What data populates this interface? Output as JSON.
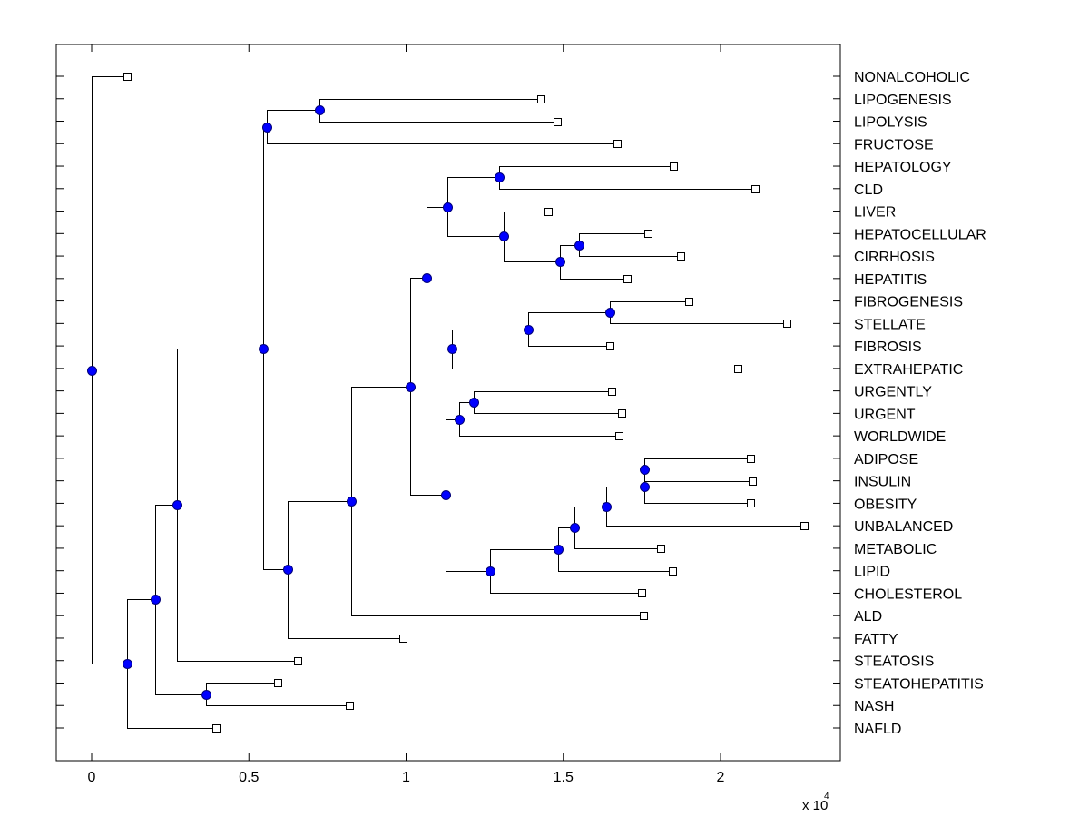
{
  "chart_data": {
    "type": "dendrogram",
    "title": "",
    "xlabel": "",
    "ylabel": "",
    "x_multiplier_label": "x 10",
    "x_multiplier_exponent": "4",
    "xlim": [
      -0.1125,
      2.38
    ],
    "xticks": [
      0,
      0.5,
      1,
      1.5,
      2
    ],
    "xtick_labels": [
      "0",
      "0.5",
      "1",
      "1.5",
      "2"
    ],
    "grid": false,
    "colors": {
      "node_fill": "#0000ff",
      "node_stroke": "#00007a",
      "leaf_fill": "#ffffff",
      "line": "#000000"
    },
    "leaves": [
      {
        "id": "NONALCOHOLIC",
        "label": "NONALCOHOLIC",
        "x": 0.113
      },
      {
        "id": "LIPOGENESIS",
        "label": "LIPOGENESIS",
        "x": 1.43
      },
      {
        "id": "LIPOLYSIS",
        "label": "LIPOLYSIS",
        "x": 1.48
      },
      {
        "id": "FRUCTOSE",
        "label": "FRUCTOSE",
        "x": 1.67
      },
      {
        "id": "HEPATOLOGY",
        "label": "HEPATOLOGY",
        "x": 1.85
      },
      {
        "id": "CLD",
        "label": "CLD",
        "x": 2.109
      },
      {
        "id": "LIVER",
        "label": "LIVER",
        "x": 1.452
      },
      {
        "id": "HEPATOCELLULAR",
        "label": "HEPATOCELLULAR",
        "x": 1.77
      },
      {
        "id": "CIRRHOSIS",
        "label": "CIRRHOSIS",
        "x": 1.873
      },
      {
        "id": "HEPATITIS",
        "label": "HEPATITIS",
        "x": 1.703
      },
      {
        "id": "FIBROGENESIS",
        "label": "FIBROGENESIS",
        "x": 1.9
      },
      {
        "id": "STELLATE",
        "label": "STELLATE",
        "x": 2.211
      },
      {
        "id": "FIBROSIS",
        "label": "FIBROSIS",
        "x": 1.648
      },
      {
        "id": "EXTRAHEPATIC",
        "label": "EXTRAHEPATIC",
        "x": 2.056
      },
      {
        "id": "URGENTLY",
        "label": "URGENTLY",
        "x": 1.654
      },
      {
        "id": "URGENT",
        "label": "URGENT",
        "x": 1.685
      },
      {
        "id": "WORLDWIDE",
        "label": "WORLDWIDE",
        "x": 1.677
      },
      {
        "id": "ADIPOSE",
        "label": "ADIPOSE",
        "x": 2.096
      },
      {
        "id": "INSULIN",
        "label": "INSULIN",
        "x": 2.102
      },
      {
        "id": "OBESITY",
        "label": "OBESITY",
        "x": 2.096
      },
      {
        "id": "UNBALANCED",
        "label": "UNBALANCED",
        "x": 2.266
      },
      {
        "id": "METABOLIC",
        "label": "METABOLIC",
        "x": 1.81
      },
      {
        "id": "LIPID",
        "label": "LIPID",
        "x": 1.847
      },
      {
        "id": "CHOLESTEROL",
        "label": "CHOLESTEROL",
        "x": 1.749
      },
      {
        "id": "ALD",
        "label": "ALD",
        "x": 1.755
      },
      {
        "id": "FATTY",
        "label": "FATTY",
        "x": 0.99
      },
      {
        "id": "STEATOSIS",
        "label": "STEATOSIS",
        "x": 0.655
      },
      {
        "id": "STEATOHEPATITIS",
        "label": "STEATOHEPATITIS",
        "x": 0.592
      },
      {
        "id": "NASH",
        "label": "NASH",
        "x": 0.82
      },
      {
        "id": "NAFLD",
        "label": "NAFLD",
        "x": 0.395
      }
    ],
    "nodes": [
      {
        "id": "n_lipo",
        "x": 0.724,
        "children": [
          "LIPOGENESIS",
          "LIPOLYSIS"
        ]
      },
      {
        "id": "n_fruc",
        "x": 0.557,
        "children": [
          "n_lipo",
          "FRUCTOSE"
        ]
      },
      {
        "id": "n_hepcld",
        "x": 1.296,
        "children": [
          "HEPATOLOGY",
          "CLD"
        ]
      },
      {
        "id": "n_hc",
        "x": 1.55,
        "children": [
          "HEPATOCELLULAR",
          "CIRRHOSIS"
        ]
      },
      {
        "id": "n_hc2",
        "x": 1.49,
        "children": [
          "n_hc",
          "HEPATITIS"
        ]
      },
      {
        "id": "n_liver",
        "x": 1.31,
        "children": [
          "LIVER",
          "n_hc2"
        ]
      },
      {
        "id": "n_a",
        "x": 1.131,
        "children": [
          "n_hepcld",
          "n_liver"
        ]
      },
      {
        "id": "n_fs",
        "x": 1.648,
        "children": [
          "FIBROGENESIS",
          "STELLATE"
        ]
      },
      {
        "id": "n_fs2",
        "x": 1.388,
        "children": [
          "n_fs",
          "FIBROSIS"
        ]
      },
      {
        "id": "n_fs3",
        "x": 1.146,
        "children": [
          "n_fs2",
          "EXTRAHEPATIC"
        ]
      },
      {
        "id": "n_b",
        "x": 1.065,
        "children": [
          "n_a",
          "n_fs3"
        ]
      },
      {
        "id": "n_urg",
        "x": 1.215,
        "children": [
          "URGENTLY",
          "URGENT"
        ]
      },
      {
        "id": "n_urg2",
        "x": 1.169,
        "children": [
          "n_urg",
          "WORLDWIDE"
        ]
      },
      {
        "id": "n_ai",
        "x": 1.757,
        "children": [
          "ADIPOSE",
          "INSULIN"
        ]
      },
      {
        "id": "n_aio",
        "x": 1.757,
        "children": [
          "n_ai",
          "OBESITY"
        ]
      },
      {
        "id": "n_u",
        "x": 1.636,
        "children": [
          "n_aio",
          "UNBALANCED"
        ]
      },
      {
        "id": "n_m",
        "x": 1.535,
        "children": [
          "n_u",
          "METABOLIC"
        ]
      },
      {
        "id": "n_l",
        "x": 1.483,
        "children": [
          "n_m",
          "LIPID"
        ]
      },
      {
        "id": "n_c",
        "x": 1.267,
        "children": [
          "n_l",
          "CHOLESTEROL"
        ]
      },
      {
        "id": "n_cc",
        "x": 1.125,
        "children": [
          "n_urg2",
          "n_c"
        ]
      },
      {
        "id": "n_d",
        "x": 1.013,
        "children": [
          "n_b",
          "n_cc"
        ]
      },
      {
        "id": "n_e",
        "x": 0.825,
        "children": [
          "n_d",
          "ALD"
        ]
      },
      {
        "id": "n_f",
        "x": 0.623,
        "children": [
          "n_e",
          "FATTY"
        ]
      },
      {
        "id": "n_g",
        "x": 0.545,
        "children": [
          "n_fruc",
          "n_f"
        ]
      },
      {
        "id": "n_h",
        "x": 0.27,
        "children": [
          "n_g",
          "STEATOSIS"
        ]
      },
      {
        "id": "n_sn",
        "x": 0.364,
        "children": [
          "STEATOHEPATITIS",
          "NASH"
        ]
      },
      {
        "id": "n_i",
        "x": 0.202,
        "children": [
          "n_h",
          "n_sn"
        ]
      },
      {
        "id": "n_j",
        "x": 0.113,
        "children": [
          "n_i",
          "NAFLD"
        ]
      },
      {
        "id": "root",
        "x": 0.0,
        "children": [
          "NONALCOHOLIC",
          "n_j"
        ]
      }
    ]
  }
}
